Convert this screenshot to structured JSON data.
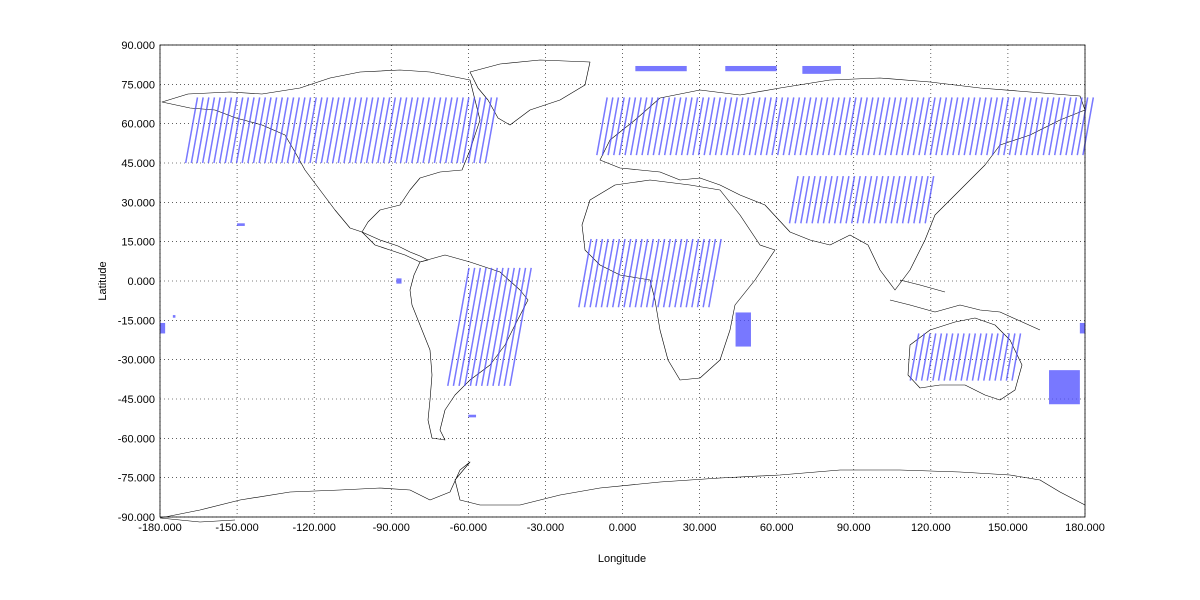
{
  "chart_data": {
    "type": "scatter",
    "xlabel": "Longitude",
    "ylabel": "Latitude",
    "xlim": [
      -180,
      180
    ],
    "ylim": [
      -90,
      90
    ],
    "grid": true,
    "x_ticks": [
      "-180.000",
      "-150.000",
      "-120.000",
      "-90.000",
      "-60.000",
      "-30.000",
      "0.000",
      "30.000",
      "60.000",
      "90.000",
      "120.000",
      "150.000",
      "180.000"
    ],
    "y_ticks": [
      "90.000",
      "75.000",
      "60.000",
      "45.000",
      "30.000",
      "15.000",
      "0.000",
      "-15.000",
      "-30.000",
      "-45.000",
      "-60.000",
      "-75.000",
      "-90.000"
    ],
    "swath_color": "#4b4bff",
    "coverage_regions": [
      {
        "lon": [
          -170,
          -52
        ],
        "lat": [
          45,
          70
        ],
        "spacing": 2.2
      },
      {
        "lon": [
          -10,
          180
        ],
        "lat": [
          48,
          70
        ],
        "spacing": 2.2
      },
      {
        "lon": [
          65,
          120
        ],
        "lat": [
          22,
          40
        ],
        "spacing": 2.2
      },
      {
        "lon": [
          -17,
          35
        ],
        "lat": [
          -10,
          16
        ],
        "spacing": 2.2
      },
      {
        "lon": [
          -68,
          -43
        ],
        "lat": [
          -40,
          5
        ],
        "spacing": 2.2
      },
      {
        "lon": [
          112,
          153
        ],
        "lat": [
          -38,
          -20
        ],
        "spacing": 2.2
      }
    ],
    "coverage_spots": [
      {
        "lon": [
          5,
          25
        ],
        "lat": [
          80,
          82
        ]
      },
      {
        "lon": [
          40,
          60
        ],
        "lat": [
          80,
          82
        ]
      },
      {
        "lon": [
          70,
          85
        ],
        "lat": [
          79,
          82
        ]
      },
      {
        "lon": [
          -150,
          -147
        ],
        "lat": [
          21,
          22
        ]
      },
      {
        "lon": [
          -88,
          -86
        ],
        "lat": [
          -1,
          1
        ]
      },
      {
        "lon": [
          -175,
          -174
        ],
        "lat": [
          -14,
          -13
        ]
      },
      {
        "lon": [
          44,
          50
        ],
        "lat": [
          -25,
          -12
        ]
      },
      {
        "lon": [
          -60,
          -57
        ],
        "lat": [
          -52,
          -51
        ]
      },
      {
        "lon": [
          166,
          178
        ],
        "lat": [
          -47,
          -34
        ]
      },
      {
        "lon": [
          -180,
          -178
        ],
        "lat": [
          -20,
          -16
        ]
      },
      {
        "lon": [
          178,
          180
        ],
        "lat": [
          -20,
          -16
        ]
      }
    ]
  }
}
